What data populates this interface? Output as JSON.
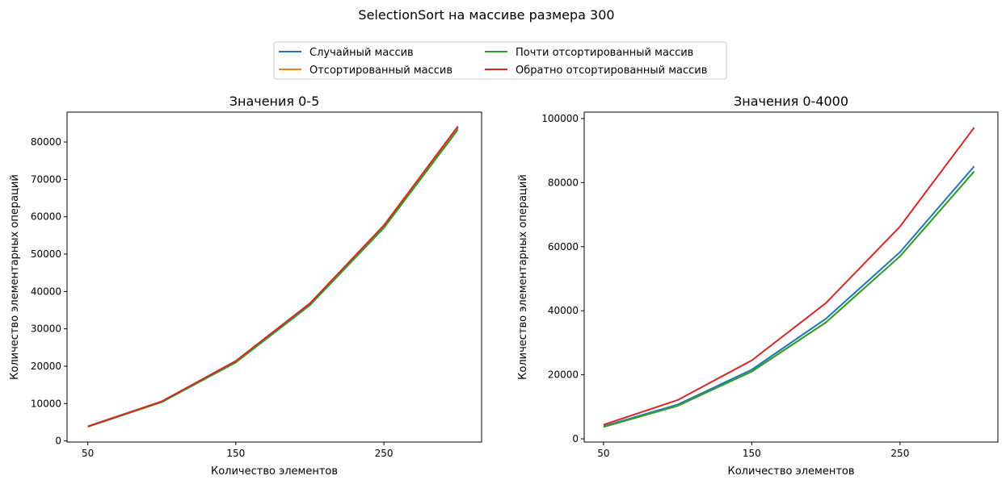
{
  "figure": {
    "suptitle": "SelectionSort на массиве размера 300"
  },
  "legend": {
    "placement": "top-center",
    "entries": [
      {
        "label": "Случайный массив",
        "color": "#1f77b4"
      },
      {
        "label": "Отсортированный массив",
        "color": "#ff7f0e"
      },
      {
        "label": "Почти отсортированный массив",
        "color": "#2ca02c"
      },
      {
        "label": "Обратно отсортированный массив",
        "color": "#d62728"
      }
    ]
  },
  "chart_data": [
    {
      "type": "line",
      "title": "Значения 0-5",
      "xlabel": "Количество элементов",
      "ylabel": "Количество элементарных операций",
      "x": [
        50,
        100,
        150,
        200,
        250,
        300
      ],
      "xticks": [
        50,
        150,
        250
      ],
      "yticks": [
        0,
        10000,
        20000,
        30000,
        40000,
        50000,
        60000,
        70000,
        80000
      ],
      "xlim": [
        36,
        316
      ],
      "ylim": [
        -300,
        88000
      ],
      "grid": false,
      "series": [
        {
          "name": "Случайный массив",
          "color": "#1f77b4",
          "values": [
            3900,
            10500,
            21400,
            36800,
            57600,
            84000
          ]
        },
        {
          "name": "Отсортированный массив",
          "color": "#ff7f0e",
          "values": [
            3800,
            10400,
            21200,
            36500,
            57300,
            83700
          ]
        },
        {
          "name": "Почти отсортированный массив",
          "color": "#2ca02c",
          "values": [
            3800,
            10400,
            21000,
            36300,
            57000,
            83300
          ]
        },
        {
          "name": "Обратно отсортированный массив",
          "color": "#d62728",
          "values": [
            3900,
            10600,
            21400,
            36800,
            57700,
            84200
          ]
        }
      ]
    },
    {
      "type": "line",
      "title": "Значения 0-4000",
      "xlabel": "Количество элементов",
      "ylabel": "Количество элементарных операций",
      "x": [
        50,
        100,
        150,
        200,
        250,
        300
      ],
      "xticks": [
        50,
        150,
        250
      ],
      "yticks": [
        0,
        20000,
        40000,
        60000,
        80000,
        100000
      ],
      "xlim": [
        37,
        316
      ],
      "ylim": [
        -1000,
        102000
      ],
      "grid": false,
      "series": [
        {
          "name": "Случайный массив",
          "color": "#1f77b4",
          "values": [
            3900,
            10700,
            21600,
            37500,
            58300,
            85100
          ]
        },
        {
          "name": "Отсортированный массив",
          "color": "#ff7f0e",
          "values": [
            3700,
            10300,
            21000,
            36300,
            57000,
            83500
          ]
        },
        {
          "name": "Почти отсортированный массив",
          "color": "#2ca02c",
          "values": [
            3700,
            10300,
            21000,
            36400,
            57000,
            83500
          ]
        },
        {
          "name": "Обратно отсортированный массив",
          "color": "#d62728",
          "values": [
            4400,
            12100,
            24500,
            42400,
            66300,
            97200
          ]
        }
      ]
    }
  ]
}
